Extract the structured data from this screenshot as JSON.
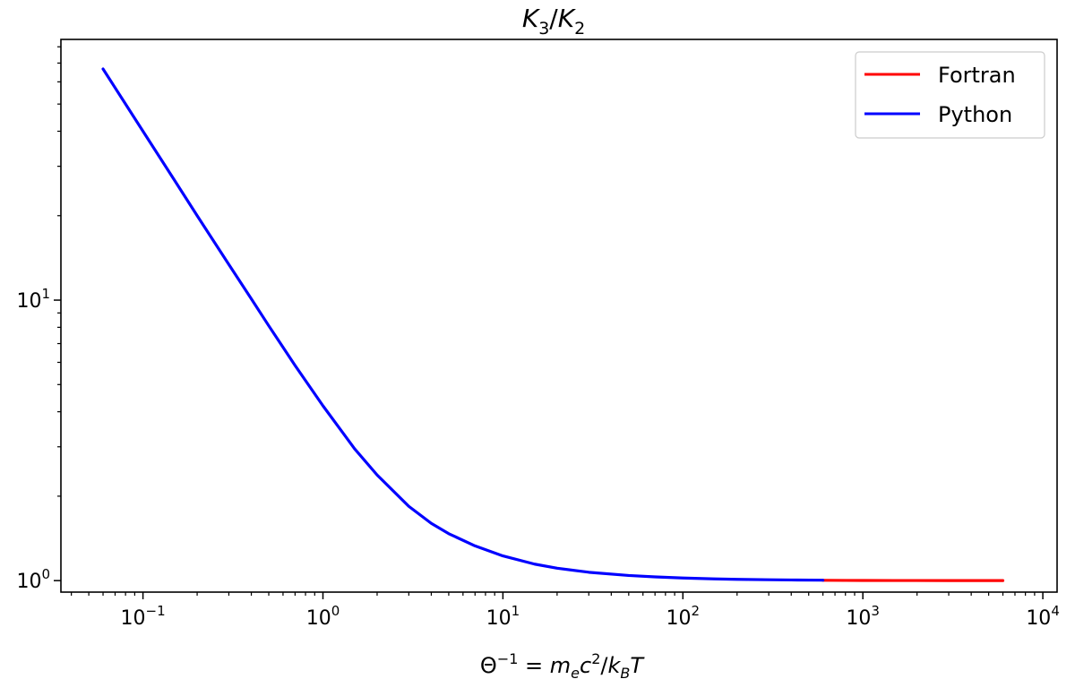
{
  "chart_data": {
    "type": "line",
    "title": "K3/K2",
    "title_parts": {
      "main1": "K",
      "sub1": "3",
      "slash": "/",
      "main2": "K",
      "sub2": "2"
    },
    "xlabel": "Θ^{-1} = m_e c^2 / k_B T",
    "xlabel_parts": {
      "theta": "Θ",
      "theta_sup": "−1",
      "eq": " = ",
      "m": "m",
      "m_sub": "e",
      "c": "c",
      "c_sup": "2",
      "slash": "/",
      "k": "k",
      "k_sub": "B",
      "T": "T"
    },
    "ylabel": "",
    "xscale": "log",
    "yscale": "log",
    "xlim": [
      0.035,
      12000
    ],
    "ylim": [
      0.91,
      85
    ],
    "x_major_ticks": [
      {
        "value": 0.1,
        "base": "10",
        "exp": "−1"
      },
      {
        "value": 1,
        "base": "10",
        "exp": "0"
      },
      {
        "value": 10,
        "base": "10",
        "exp": "1"
      },
      {
        "value": 100,
        "base": "10",
        "exp": "2"
      },
      {
        "value": 1000,
        "base": "10",
        "exp": "3"
      },
      {
        "value": 10000,
        "base": "10",
        "exp": "4"
      }
    ],
    "y_major_ticks": [
      {
        "value": 1,
        "base": "10",
        "exp": "0"
      },
      {
        "value": 10,
        "base": "10",
        "exp": "1"
      }
    ],
    "legend_position": "top-right",
    "series": [
      {
        "name": "Fortran",
        "color": "#ff0000",
        "x": [
          600,
          800,
          1000,
          1500,
          2000,
          3000,
          4000,
          5000,
          6000
        ],
        "y": [
          1.0025,
          1.0019,
          1.0015,
          1.001,
          1.00075,
          1.0005,
          1.00037,
          1.0003,
          1.00025
        ]
      },
      {
        "name": "Python",
        "color": "#0000ff",
        "x": [
          0.06,
          0.08,
          0.1,
          0.15,
          0.2,
          0.3,
          0.4,
          0.5,
          0.7,
          1,
          1.5,
          2,
          3,
          4,
          5,
          7,
          10,
          15,
          20,
          30,
          50,
          70,
          100,
          150,
          200,
          300,
          400,
          600
        ],
        "y": [
          66.7,
          50.0,
          40.0,
          26.7,
          20.0,
          13.4,
          10.1,
          8.1,
          5.85,
          4.2,
          2.95,
          2.38,
          1.84,
          1.6,
          1.47,
          1.33,
          1.225,
          1.145,
          1.107,
          1.071,
          1.043,
          1.031,
          1.0215,
          1.0143,
          1.0107,
          1.0071,
          1.0054,
          1.0036
        ]
      }
    ]
  }
}
